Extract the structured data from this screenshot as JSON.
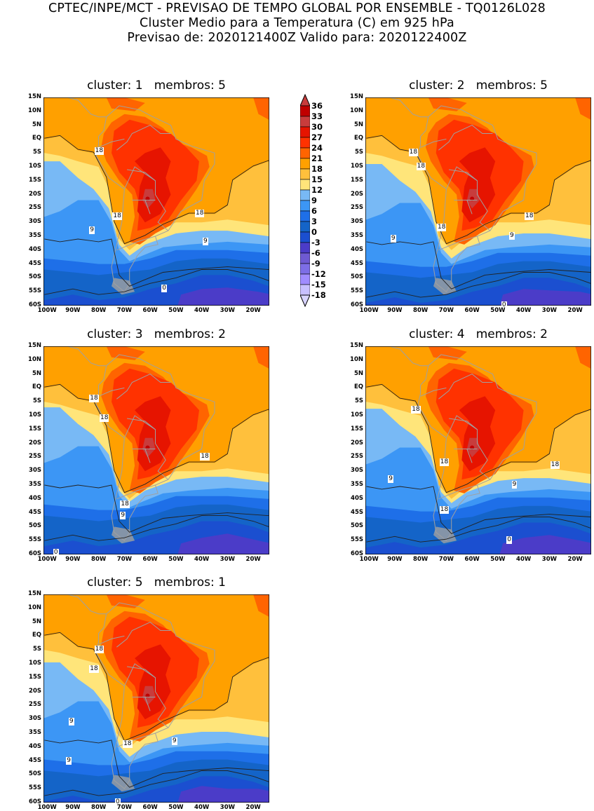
{
  "header": {
    "line1": "CPTEC/INPE/MCT - PREVISAO DE TEMPO GLOBAL POR ENSEMBLE - TQ0126L028",
    "line2": "Cluster Medio para a Temperatura (C) em 925 hPa",
    "line3": "Previsao de: 2020121400Z    Valido para: 2020122400Z"
  },
  "axes": {
    "lat_labels": [
      "15N",
      "10N",
      "5N",
      "EQ",
      "5S",
      "10S",
      "15S",
      "20S",
      "25S",
      "30S",
      "35S",
      "40S",
      "45S",
      "50S",
      "55S",
      "60S"
    ],
    "lon_labels": [
      "100W",
      "90W",
      "80W",
      "70W",
      "60W",
      "50W",
      "40W",
      "30W",
      "20W"
    ]
  },
  "colorbar": {
    "levels": [
      "36",
      "33",
      "30",
      "27",
      "24",
      "21",
      "18",
      "15",
      "12",
      "9",
      "6",
      "3",
      "0",
      "-3",
      "-6",
      "-9",
      "-12",
      "-15",
      "-18"
    ],
    "colors": [
      "#c00000",
      "#c83c3c",
      "#e61400",
      "#ff3200",
      "#ff6400",
      "#ffa000",
      "#ffc03c",
      "#ffe57a",
      "#78b9f5",
      "#3c96f5",
      "#1e6fe8",
      "#1464c8",
      "#1b4fd0",
      "#4b3cc8",
      "#6e5ad2",
      "#7d6ee6",
      "#a08cff",
      "#c8c0ff"
    ],
    "top_arrow_color": "#c83c3c",
    "bottom_arrow_color": "#d8d4ff"
  },
  "panels": [
    {
      "title": "cluster: 1   membros: 5",
      "contour_labels": [
        "18",
        "18",
        "18",
        "9",
        "9",
        "0"
      ]
    },
    {
      "title": "cluster: 2   membros: 5",
      "contour_labels": [
        "18",
        "18",
        "18",
        "18",
        "9",
        "9",
        "0"
      ]
    },
    {
      "title": "cluster: 3   membros: 2",
      "contour_labels": [
        "18",
        "18",
        "18",
        "18",
        "9",
        "0"
      ]
    },
    {
      "title": "cluster: 4   membros: 2",
      "contour_labels": [
        "18",
        "18",
        "18",
        "18",
        "9",
        "9",
        "0"
      ]
    },
    {
      "title": "cluster: 5   membros: 1",
      "contour_labels": [
        "18",
        "18",
        "18",
        "9",
        "9",
        "9",
        "0"
      ]
    }
  ]
}
